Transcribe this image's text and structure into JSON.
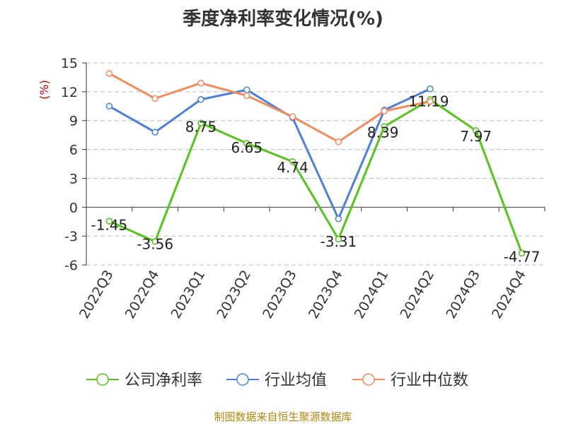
{
  "source_note": "制图数据来自恒生聚源数据库",
  "colors": {
    "axis": "#333333",
    "grid": "#bbbbbb",
    "ylabel": "#cc0000",
    "series": [
      "#52c41a",
      "#4a7fdc",
      "#f5895a"
    ]
  },
  "chart_data": {
    "type": "line",
    "title": "季度净利率变化情况(%)",
    "ylabel": "(%)",
    "xlabel": "",
    "ylim": [
      -6,
      15
    ],
    "yticks": [
      15,
      12,
      9,
      6,
      3,
      0,
      -3,
      -6
    ],
    "grid": true,
    "legend_position": "bottom",
    "categories": [
      "2022Q3",
      "2022Q4",
      "2023Q1",
      "2023Q2",
      "2023Q3",
      "2023Q4",
      "2024Q1",
      "2024Q2",
      "2024Q3",
      "2024Q4"
    ],
    "series": [
      {
        "name": "公司净利率",
        "values": [
          -1.45,
          -3.56,
          8.75,
          6.65,
          4.74,
          -3.31,
          8.39,
          11.19,
          7.97,
          -4.77
        ],
        "labels": [
          "-1.45",
          "-3.56",
          "8.75",
          "6.65",
          "4.74",
          "-3.31",
          "8.39",
          "11.19",
          "7.97",
          "-4.77"
        ]
      },
      {
        "name": "行业均值",
        "values": [
          10.5,
          7.8,
          11.2,
          12.2,
          9.3,
          -1.2,
          10.1,
          12.3,
          null,
          null
        ]
      },
      {
        "name": "行业中位数",
        "values": [
          13.9,
          11.3,
          12.9,
          11.6,
          9.4,
          6.8,
          10.0,
          11.0,
          null,
          null
        ]
      }
    ]
  }
}
